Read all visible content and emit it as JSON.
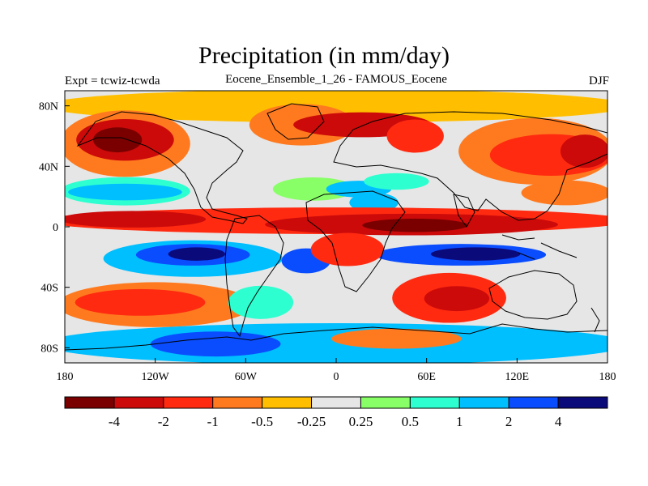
{
  "header": {
    "title": "Precipitation (in mm/day)",
    "subtitle": "Eocene_Ensemble_1_26 - FAMOUS_Eocene",
    "left_label": "Expt = tcwiz-tcwda",
    "right_label": "DJF"
  },
  "map": {
    "projection": "cylindrical-equidistant",
    "lon_range": [
      -180,
      180
    ],
    "lat_range": [
      -90,
      90
    ],
    "x_ticks": [
      {
        "value": -180,
        "label": "180"
      },
      {
        "value": -120,
        "label": "120W"
      },
      {
        "value": -60,
        "label": "60W"
      },
      {
        "value": 0,
        "label": "0"
      },
      {
        "value": 60,
        "label": "60E"
      },
      {
        "value": 120,
        "label": "120E"
      },
      {
        "value": 180,
        "label": "180"
      }
    ],
    "y_ticks": [
      {
        "value": 80,
        "label": "80N"
      },
      {
        "value": 40,
        "label": "40N"
      },
      {
        "value": 0,
        "label": "0"
      },
      {
        "value": -40,
        "label": "40S"
      },
      {
        "value": -80,
        "label": "80S"
      }
    ],
    "background_color": "#e6e6e6",
    "regions": [
      {
        "lon": [
          -180,
          180
        ],
        "lat": [
          70,
          90
        ],
        "level": -0.25
      },
      {
        "lon": [
          -180,
          -100
        ],
        "lat": [
          35,
          75
        ],
        "level": -0.5
      },
      {
        "lon": [
          -170,
          -110
        ],
        "lat": [
          45,
          70
        ],
        "level": -2
      },
      {
        "lon": [
          -160,
          -130
        ],
        "lat": [
          50,
          65
        ],
        "level": -4
      },
      {
        "lon": [
          -55,
          10
        ],
        "lat": [
          55,
          80
        ],
        "level": -0.5
      },
      {
        "lon": [
          -25,
          60
        ],
        "lat": [
          60,
          75
        ],
        "level": -2
      },
      {
        "lon": [
          35,
          70
        ],
        "lat": [
          50,
          70
        ],
        "level": -1
      },
      {
        "lon": [
          85,
          180
        ],
        "lat": [
          30,
          70
        ],
        "level": -0.5
      },
      {
        "lon": [
          105,
          180
        ],
        "lat": [
          35,
          60
        ],
        "level": -1
      },
      {
        "lon": [
          150,
          180
        ],
        "lat": [
          40,
          60
        ],
        "level": -2
      },
      {
        "lon": [
          -180,
          -100
        ],
        "lat": [
          15,
          32
        ],
        "level": 0.5
      },
      {
        "lon": [
          -175,
          -105
        ],
        "lat": [
          18,
          28
        ],
        "level": 1
      },
      {
        "lon": [
          -40,
          10
        ],
        "lat": [
          18,
          32
        ],
        "level": 0.25
      },
      {
        "lon": [
          -5,
          35
        ],
        "lat": [
          20,
          30
        ],
        "level": 1
      },
      {
        "lon": [
          20,
          60
        ],
        "lat": [
          25,
          35
        ],
        "level": 0.5
      },
      {
        "lon": [
          10,
          40
        ],
        "lat": [
          10,
          22
        ],
        "level": 1
      },
      {
        "lon": [
          125,
          180
        ],
        "lat": [
          15,
          30
        ],
        "level": -0.5
      },
      {
        "lon": [
          -180,
          180
        ],
        "lat": [
          -4,
          12
        ],
        "level": -1
      },
      {
        "lon": [
          -180,
          -90
        ],
        "lat": [
          0,
          10
        ],
        "level": -2
      },
      {
        "lon": [
          -40,
          140
        ],
        "lat": [
          -5,
          8
        ],
        "level": -2
      },
      {
        "lon": [
          20,
          85
        ],
        "lat": [
          -3,
          5
        ],
        "level": -4
      },
      {
        "lon": [
          -150,
          -40
        ],
        "lat": [
          -32,
          -10
        ],
        "level": 1
      },
      {
        "lon": [
          -130,
          -60
        ],
        "lat": [
          -25,
          -12
        ],
        "level": 2
      },
      {
        "lon": [
          -110,
          -75
        ],
        "lat": [
          -22,
          -14
        ],
        "level": 4
      },
      {
        "lon": [
          -35,
          -5
        ],
        "lat": [
          -30,
          -15
        ],
        "level": 2
      },
      {
        "lon": [
          30,
          135
        ],
        "lat": [
          -25,
          -12
        ],
        "level": 2
      },
      {
        "lon": [
          65,
          120
        ],
        "lat": [
          -22,
          -14
        ],
        "level": 4
      },
      {
        "lon": [
          -15,
          30
        ],
        "lat": [
          -25,
          -5
        ],
        "level": -1
      },
      {
        "lon": [
          -180,
          -60
        ],
        "lat": [
          -65,
          -38
        ],
        "level": -0.5
      },
      {
        "lon": [
          -170,
          -90
        ],
        "lat": [
          -58,
          -42
        ],
        "level": -1
      },
      {
        "lon": [
          -70,
          -30
        ],
        "lat": [
          -60,
          -40
        ],
        "level": 0.5
      },
      {
        "lon": [
          40,
          110
        ],
        "lat": [
          -62,
          -32
        ],
        "level": -1
      },
      {
        "lon": [
          60,
          100
        ],
        "lat": [
          -55,
          -40
        ],
        "level": -2
      },
      {
        "lon": [
          -180,
          180
        ],
        "lat": [
          -90,
          -65
        ],
        "level": 1
      },
      {
        "lon": [
          -120,
          -40
        ],
        "lat": [
          -85,
          -70
        ],
        "level": 2
      },
      {
        "lon": [
          0,
          80
        ],
        "lat": [
          -80,
          -68
        ],
        "level": -0.5
      }
    ],
    "coastline_color": "#000000"
  },
  "colorbar": {
    "colors": [
      "#7a0000",
      "#cc0a0a",
      "#ff2a10",
      "#ff7a1f",
      "#ffbf00",
      "#e6e6e6",
      "#88ff66",
      "#2effd0",
      "#00bfff",
      "#0a4dff",
      "#0b0a7a"
    ],
    "labels": [
      "-4",
      "-2",
      "-1",
      "-0.5",
      "-0.25",
      "0.25",
      "0.5",
      "1",
      "2",
      "4"
    ]
  }
}
